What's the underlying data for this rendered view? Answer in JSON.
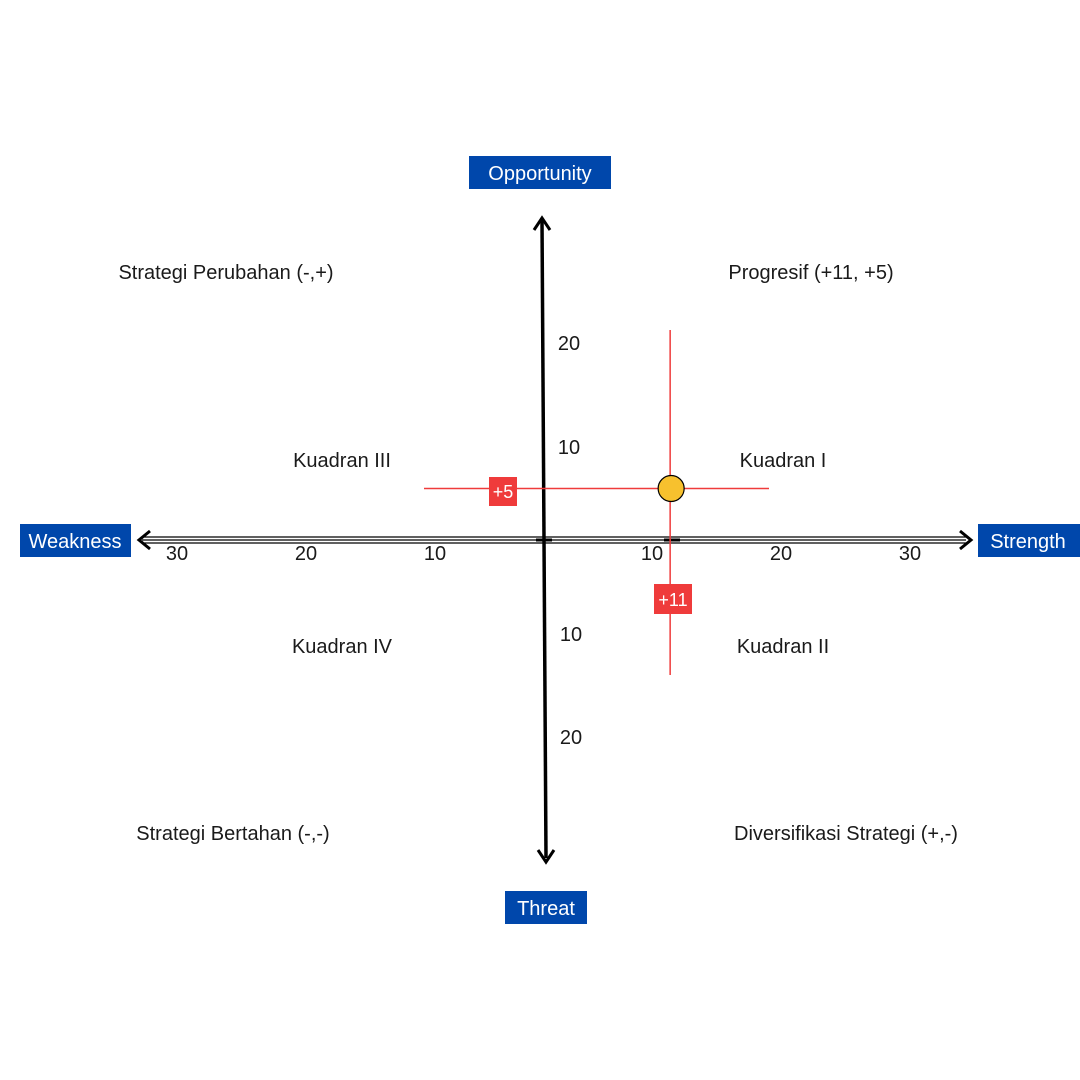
{
  "axis_labels": {
    "top": "Opportunity",
    "bottom": "Threat",
    "left": "Weakness",
    "right": "Strength"
  },
  "strategies": {
    "top_left": "Strategi Perubahan (-,+)",
    "top_right": "Progresif (+11, +5)",
    "bottom_left": "Strategi Bertahan (-,-)",
    "bottom_right": "Diversifikasi Strategi (+,-)"
  },
  "quadrants": {
    "q1": "Kuadran I",
    "q2": "Kuadran II",
    "q3": "Kuadran III",
    "q4": "Kuadran IV"
  },
  "ticks": {
    "x_left": [
      "30",
      "20",
      "10"
    ],
    "x_right": [
      "10",
      "20",
      "30"
    ],
    "y_up": [
      "20",
      "10"
    ],
    "y_down": [
      "10",
      "20"
    ]
  },
  "point": {
    "x": 11,
    "y": 5
  },
  "markers": {
    "x_label": "+11",
    "y_label": "+5"
  },
  "colors": {
    "badge_bg": "#0047ab",
    "marker_red": "#ef3b3b",
    "point_fill": "#f7c12e",
    "axis": "#000000"
  }
}
